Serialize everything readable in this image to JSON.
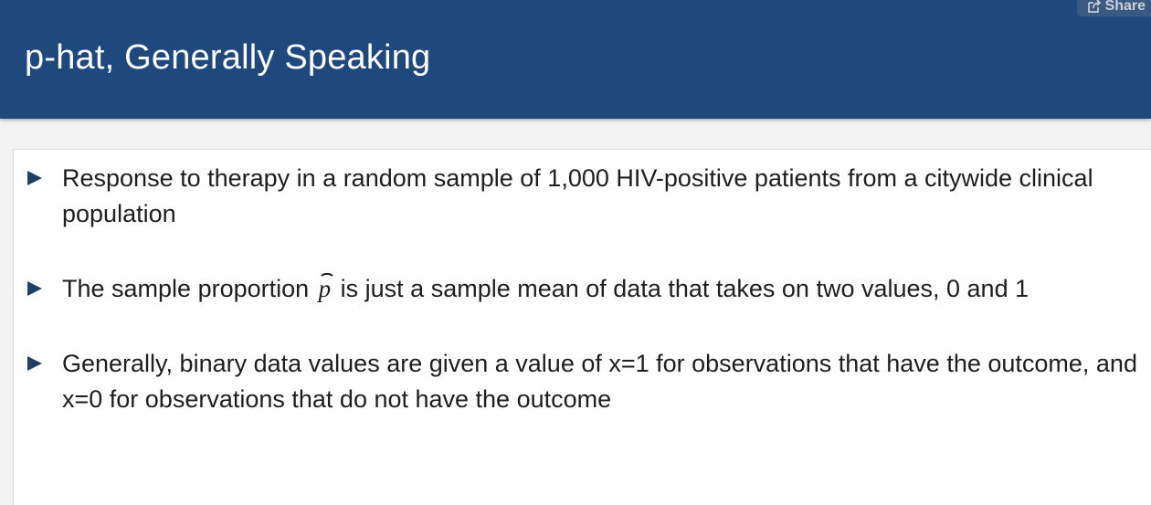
{
  "header": {
    "title": "p-hat, Generally Speaking",
    "share_label": "Share"
  },
  "content": {
    "bullets": [
      {
        "text": "Response to therapy in a random sample of 1,000 HIV-positive patients from a citywide clinical population"
      },
      {
        "text_before": "The sample proportion ",
        "symbol": "p",
        "text_after": " is just a sample mean of data that takes on two values, 0 and 1"
      },
      {
        "text": "Generally, binary data values are given a value of x=1 for observations that have the outcome, and x=0 for observations that do not have the outcome"
      }
    ]
  },
  "icons": {
    "share": "share-icon",
    "bullet": "triangle-bullet"
  },
  "colors": {
    "title_bar": "#1f487c",
    "bullet_marker": "#1f3f66",
    "body_text": "#1e1e1e"
  }
}
